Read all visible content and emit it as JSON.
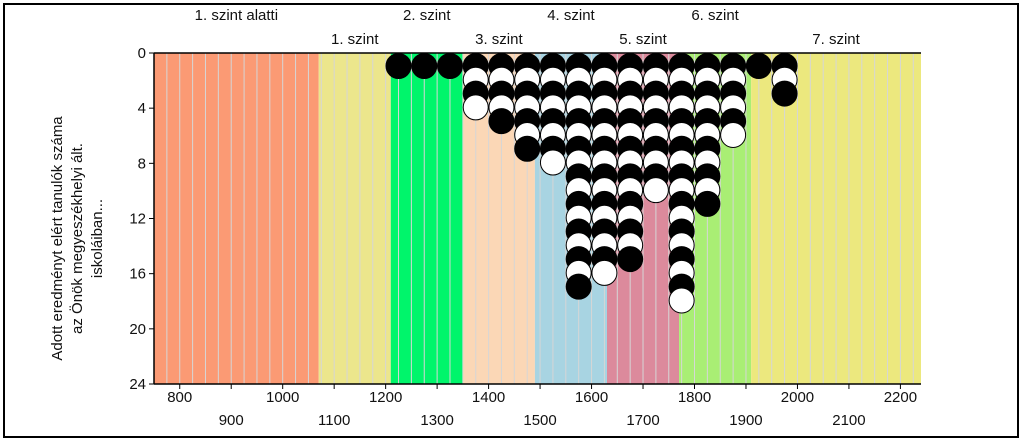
{
  "chart_data": {
    "type": "scatter",
    "title": "",
    "ylabel_lines": [
      "Adott eredményt elért tanulók száma",
      "az Önök megyeszékhelyi ált.",
      "iskoláiban..."
    ],
    "xlim": [
      750,
      2240
    ],
    "ylim": [
      24,
      0
    ],
    "x_ticks_row1": [
      800,
      1000,
      1200,
      1400,
      1600,
      1800,
      2000,
      2200
    ],
    "x_ticks_row2": [
      900,
      1100,
      1300,
      1500,
      1700,
      1900,
      2100
    ],
    "y_ticks": [
      0,
      4,
      8,
      12,
      16,
      20,
      24
    ],
    "levels": [
      {
        "label": "1. szint alatti",
        "from": 750,
        "to": 1070,
        "color": "#fb9a74",
        "row": 1
      },
      {
        "label": "1. szint",
        "from": 1070,
        "to": 1210,
        "color": "#ece68c",
        "row": 2
      },
      {
        "label": "2. szint",
        "from": 1210,
        "to": 1350,
        "color": "#00f56b",
        "row": 1
      },
      {
        "label": "3. szint",
        "from": 1350,
        "to": 1490,
        "color": "#fbd7b6",
        "row": 2
      },
      {
        "label": "4. szint",
        "from": 1490,
        "to": 1630,
        "color": "#a8d4e2",
        "row": 1
      },
      {
        "label": "5. szint",
        "from": 1630,
        "to": 1770,
        "color": "#dc8a9c",
        "row": 2
      },
      {
        "label": "6. szint",
        "from": 1770,
        "to": 1910,
        "color": "#a9ee74",
        "row": 1
      },
      {
        "label": "7. szint",
        "from": 1910,
        "to": 2240,
        "color": "#ece87e",
        "row": 2
      }
    ],
    "column_step": 25,
    "columns": [
      {
        "x": 1225,
        "markers": [
          "b"
        ]
      },
      {
        "x": 1275,
        "markers": [
          "b"
        ]
      },
      {
        "x": 1325,
        "markers": [
          "b"
        ]
      },
      {
        "x": 1375,
        "markers": [
          "b",
          "w",
          "b",
          "w"
        ]
      },
      {
        "x": 1425,
        "markers": [
          "b",
          "w",
          "b",
          "w",
          "b"
        ]
      },
      {
        "x": 1475,
        "markers": [
          "b",
          "w",
          "b",
          "w",
          "b",
          "w",
          "b"
        ]
      },
      {
        "x": 1525,
        "markers": [
          "b",
          "w",
          "b",
          "w",
          "b",
          "w",
          "b",
          "w"
        ]
      },
      {
        "x": 1575,
        "markers": [
          "b",
          "w",
          "b",
          "w",
          "b",
          "w",
          "b",
          "w",
          "b",
          "w",
          "b",
          "w",
          "b",
          "w",
          "b",
          "w",
          "b"
        ]
      },
      {
        "x": 1625,
        "markers": [
          "b",
          "w",
          "b",
          "w",
          "b",
          "w",
          "b",
          "w",
          "b",
          "w",
          "b",
          "w",
          "b",
          "w",
          "b",
          "w"
        ]
      },
      {
        "x": 1675,
        "markers": [
          "b",
          "w",
          "b",
          "w",
          "b",
          "w",
          "b",
          "w",
          "b",
          "w",
          "b",
          "w",
          "b",
          "w",
          "b"
        ]
      },
      {
        "x": 1725,
        "markers": [
          "b",
          "w",
          "b",
          "w",
          "b",
          "w",
          "b",
          "w",
          "b",
          "w"
        ]
      },
      {
        "x": 1775,
        "markers": [
          "b",
          "w",
          "b",
          "w",
          "b",
          "w",
          "b",
          "w",
          "b",
          "w",
          "b",
          "w",
          "b",
          "w",
          "b",
          "w",
          "b",
          "w"
        ]
      },
      {
        "x": 1825,
        "markers": [
          "b",
          "w",
          "b",
          "w",
          "b",
          "w",
          "b",
          "w",
          "b",
          "w",
          "b"
        ]
      },
      {
        "x": 1875,
        "markers": [
          "b",
          "w",
          "b",
          "w",
          "b",
          "w"
        ]
      },
      {
        "x": 1925,
        "markers": [
          "b"
        ]
      },
      {
        "x": 1975,
        "markers": [
          "b",
          "w",
          "b"
        ]
      }
    ]
  }
}
